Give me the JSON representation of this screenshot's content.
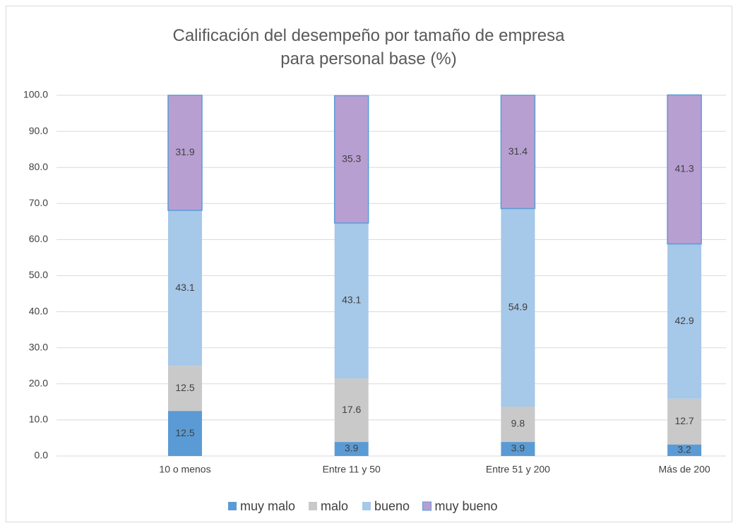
{
  "chart_data": {
    "type": "stacked_bar",
    "title": "Calificación del desempeño por tamaño de empresa para personal base (%)",
    "categories": [
      "10 o menos",
      "Entre 11 y 50",
      "Entre 51 y 200",
      "Más de 200"
    ],
    "series": [
      {
        "name": "muy malo",
        "color": "#5b9bd5",
        "values": [
          12.5,
          3.9,
          3.9,
          3.2
        ]
      },
      {
        "name": "malo",
        "color": "#c9c9c9",
        "values": [
          12.5,
          17.6,
          9.8,
          12.7
        ]
      },
      {
        "name": "bueno",
        "color": "#a6c8e9",
        "values": [
          43.1,
          43.1,
          54.9,
          42.9
        ]
      },
      {
        "name": "muy bueno",
        "color": "#b89fd2",
        "values": [
          31.9,
          35.3,
          31.4,
          41.3
        ]
      }
    ],
    "ylim": [
      0,
      100
    ],
    "yticks": [
      {
        "value": 0,
        "label": "0.0"
      },
      {
        "value": 10,
        "label": "10.0"
      },
      {
        "value": 20,
        "label": "20.0"
      },
      {
        "value": 30,
        "label": "30.0"
      },
      {
        "value": 40,
        "label": "40.0"
      },
      {
        "value": 50,
        "label": "50.0"
      },
      {
        "value": 60,
        "label": "60.0"
      },
      {
        "value": 70,
        "label": "70.0"
      },
      {
        "value": 80,
        "label": "80.0"
      },
      {
        "value": 90,
        "label": "90.0"
      },
      {
        "value": 100,
        "label": "100.0"
      }
    ],
    "grid": true,
    "legend": "bottom"
  }
}
